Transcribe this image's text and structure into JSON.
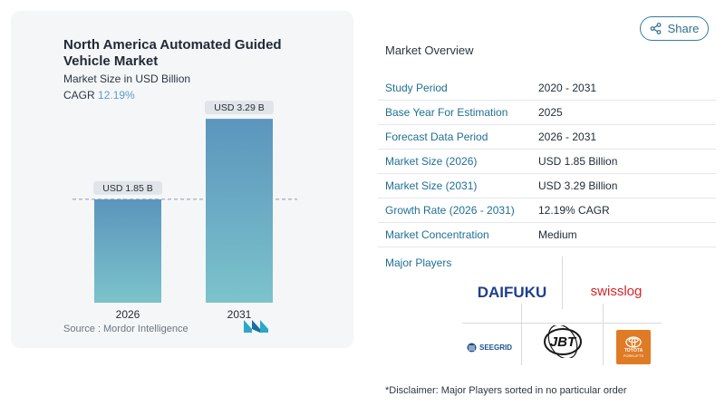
{
  "share": {
    "label": "Share",
    "icon": "share-icon"
  },
  "chart": {
    "title": "North America Automated Guided Vehicle Market",
    "subtitle": "Market Size in USD Billion",
    "cagr_label": "CAGR",
    "cagr_value": "12.19%",
    "source": "Source : Mordor Intelligence",
    "bar_color_top": "#5b95bd",
    "bar_color_bottom": "#7cc3cb"
  },
  "chart_data": {
    "type": "bar",
    "title": "North America Automated Guided Vehicle Market",
    "ylabel": "Market Size in USD Billion",
    "categories": [
      "2026",
      "2031"
    ],
    "values": [
      1.85,
      3.29
    ],
    "data_labels": [
      "USD 1.85 B",
      "USD 3.29 B"
    ],
    "ylim": [
      0,
      3.6
    ],
    "grid": false,
    "reference_line": 1.85
  },
  "overview": {
    "title": "Market Overview",
    "rows": [
      {
        "key": "Study Period",
        "value": "2020 - 2031"
      },
      {
        "key": "Base Year For Estimation",
        "value": "2025"
      },
      {
        "key": "Forecast Data Period",
        "value": "2026 - 2031"
      },
      {
        "key": "Market Size (2026)",
        "value": "USD 1.85 Billion"
      },
      {
        "key": "Market Size (2031)",
        "value": "USD 3.29 Billion"
      },
      {
        "key": "Growth Rate (2026 - 2031)",
        "value": "12.19% CAGR"
      },
      {
        "key": "Market Concentration",
        "value": "Medium"
      }
    ]
  },
  "players": {
    "label": "Major Players",
    "logos": {
      "daifuku": "DAIFUKU",
      "swisslog": "swisslog",
      "seegrid": "SEEGRID",
      "jbt": "JBT",
      "toyota_line1": "TOYOTA",
      "toyota_line2": "FORKLIFTS"
    }
  },
  "disclaimer": "*Disclaimer: Major Players sorted in no particular order"
}
